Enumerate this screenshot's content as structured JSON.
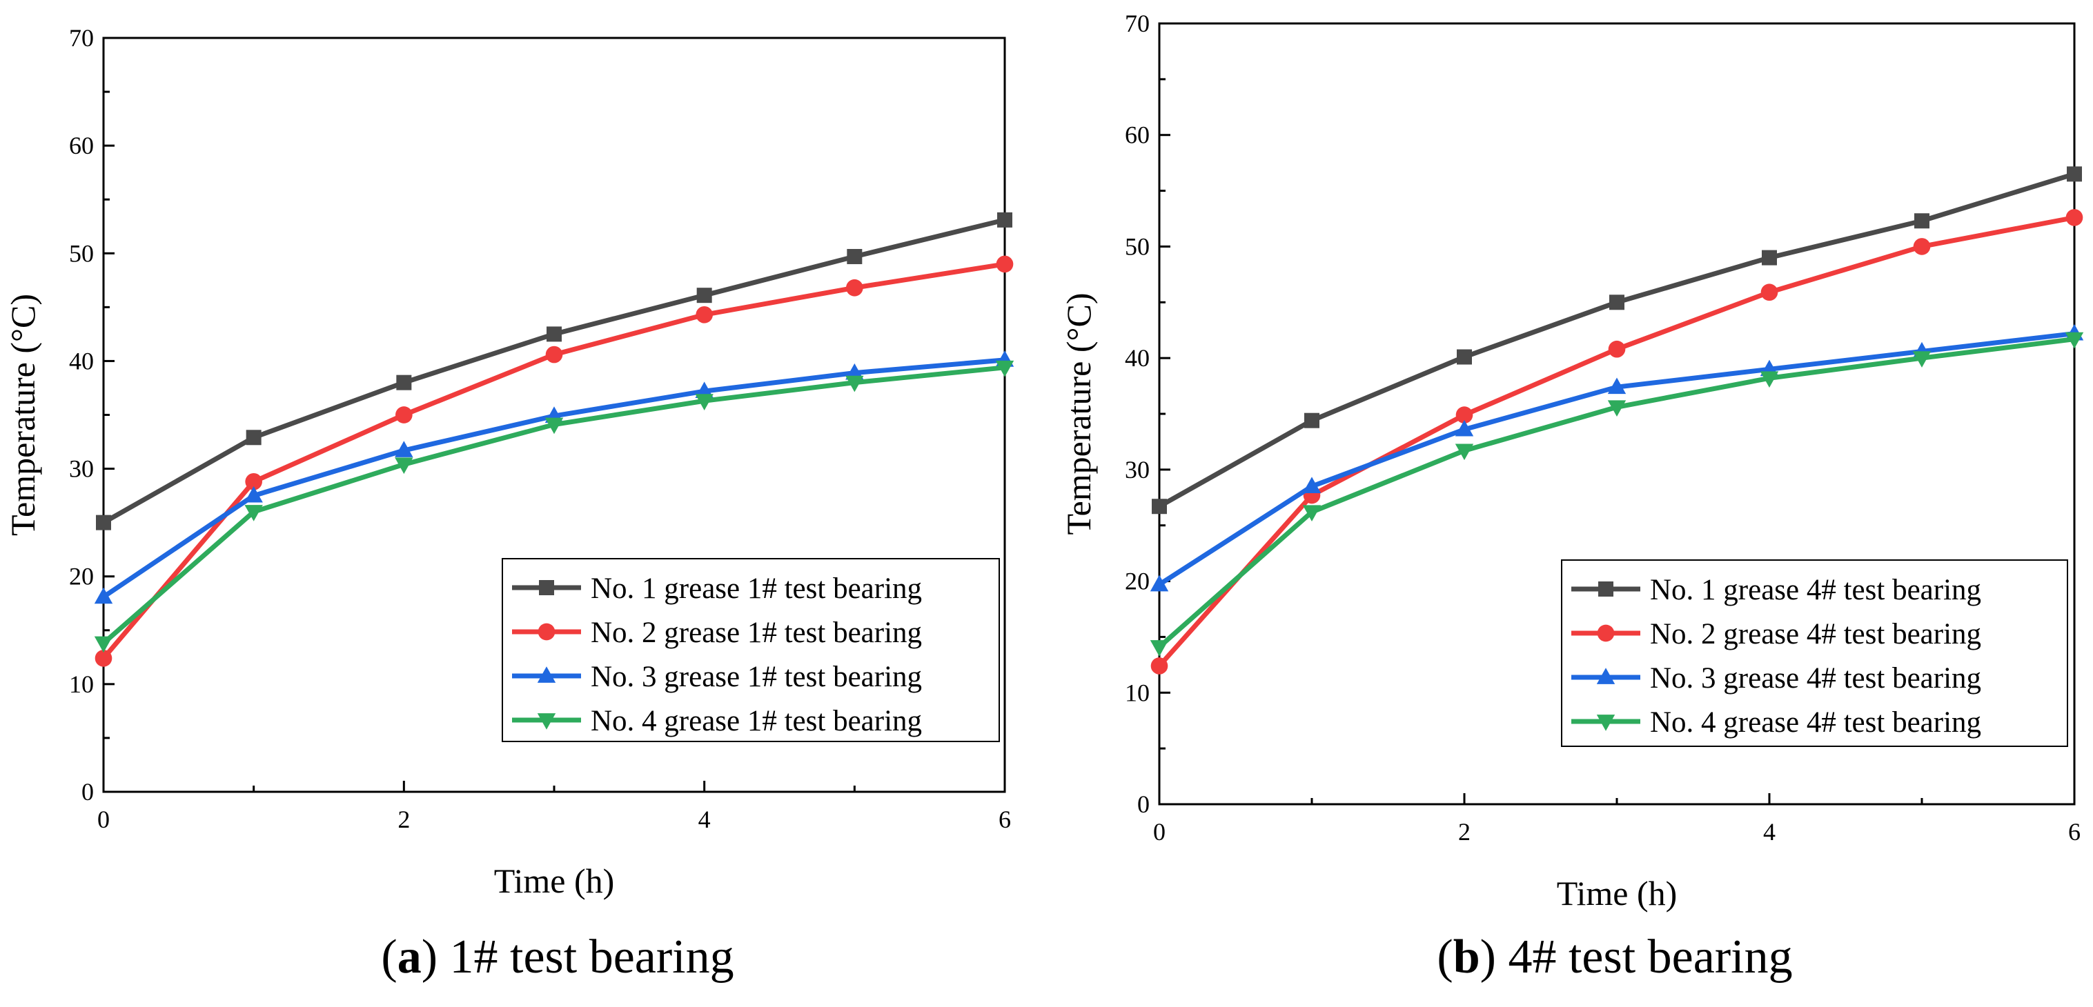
{
  "chart_data": [
    {
      "type": "line",
      "caption_letter": "a",
      "caption_text": "1# test bearing",
      "xlabel": "Time (h)",
      "ylabel": "Temperature (°C)",
      "xlim": [
        0,
        6
      ],
      "ylim": [
        0,
        70
      ],
      "xticks": [
        0,
        2,
        4,
        6
      ],
      "yticks": [
        0,
        10,
        20,
        30,
        40,
        50,
        60,
        70
      ],
      "legend_position": "bottom-right",
      "x": [
        0,
        1,
        2,
        3,
        4,
        5,
        6
      ],
      "series": [
        {
          "name": "No. 1 grease 1# test bearing",
          "color": "#4a4a4a",
          "marker": "square",
          "values": [
            25.0,
            32.9,
            38.0,
            42.5,
            46.1,
            49.7,
            53.1
          ]
        },
        {
          "name": "No. 2 grease 1# test bearing",
          "color": "#f03c3c",
          "marker": "circle",
          "values": [
            12.4,
            28.8,
            35.0,
            40.6,
            44.3,
            46.8,
            49.0
          ]
        },
        {
          "name": "No. 3 grease 1# test bearing",
          "color": "#1f68e0",
          "marker": "triangle-up",
          "values": [
            18.1,
            27.5,
            31.7,
            34.9,
            37.2,
            38.9,
            40.1
          ]
        },
        {
          "name": "No. 4 grease 1# test bearing",
          "color": "#2eab5c",
          "marker": "triangle-down",
          "values": [
            13.8,
            26.0,
            30.4,
            34.1,
            36.3,
            38.0,
            39.4
          ]
        }
      ]
    },
    {
      "type": "line",
      "caption_letter": "b",
      "caption_text": "4# test bearing",
      "xlabel": "Time (h)",
      "ylabel": "Temperature (°C)",
      "xlim": [
        0,
        6
      ],
      "ylim": [
        0,
        70
      ],
      "xticks": [
        0,
        2,
        4,
        6
      ],
      "yticks": [
        0,
        10,
        20,
        30,
        40,
        50,
        60,
        70
      ],
      "legend_position": "bottom-right",
      "x": [
        0,
        1,
        2,
        3,
        4,
        5,
        6
      ],
      "series": [
        {
          "name": "No. 1 grease 4# test bearing",
          "color": "#4a4a4a",
          "marker": "square",
          "values": [
            26.7,
            34.4,
            40.1,
            45.0,
            49.0,
            52.3,
            56.5
          ]
        },
        {
          "name": "No. 2 grease 4# test bearing",
          "color": "#f03c3c",
          "marker": "circle",
          "values": [
            12.4,
            27.7,
            34.9,
            40.8,
            45.9,
            50.0,
            52.6
          ]
        },
        {
          "name": "No. 3 grease 4# test bearing",
          "color": "#1f68e0",
          "marker": "triangle-up",
          "values": [
            19.7,
            28.5,
            33.6,
            37.4,
            39.0,
            40.6,
            42.2
          ]
        },
        {
          "name": "No. 4 grease 4# test bearing",
          "color": "#2eab5c",
          "marker": "triangle-down",
          "values": [
            14.1,
            26.2,
            31.7,
            35.6,
            38.2,
            40.0,
            41.7
          ]
        }
      ]
    }
  ]
}
